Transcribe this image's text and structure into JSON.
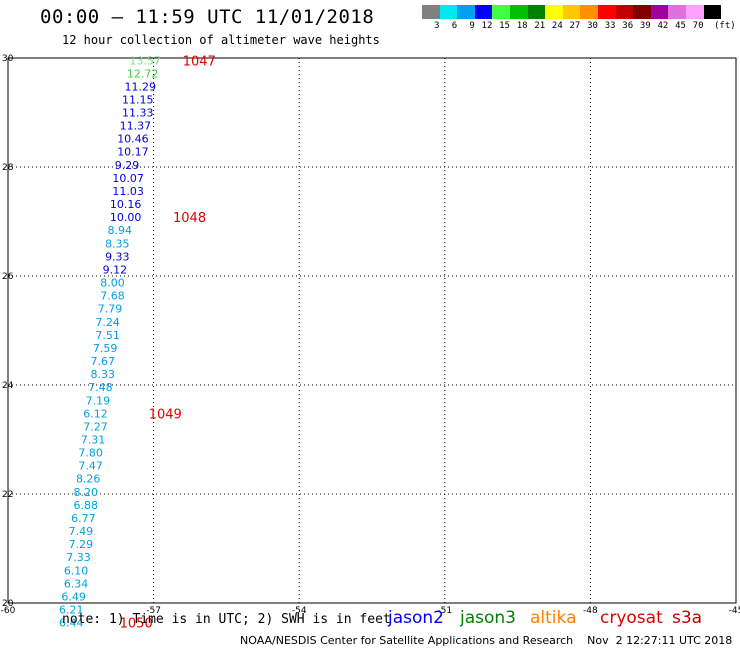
{
  "header": {
    "title": "00:00 – 11:59 UTC 11/01/2018",
    "subtitle": "12 hour collection of altimeter wave heights"
  },
  "legend": {
    "colors": [
      "#808080",
      "#00e8f0",
      "#00a0f0",
      "#0000ff",
      "#40ff40",
      "#00c000",
      "#008000",
      "#ffff00",
      "#ffc800",
      "#ff9000",
      "#ff0000",
      "#c00000",
      "#800000",
      "#a000a0",
      "#e070e0",
      "#ffa0ff",
      "#000000"
    ],
    "labels": [
      "3",
      "6",
      "9",
      "12",
      "15",
      "18",
      "21",
      "24",
      "27",
      "30",
      "33",
      "36",
      "39",
      "42",
      "45",
      "70"
    ],
    "unit": "(ft)"
  },
  "note": "note: 1) Time is in UTC; 2) SWH is in feet",
  "satellites": [
    {
      "name": "jason2",
      "color": "#0000ff"
    },
    {
      "name": "jason3",
      "color": "#008000"
    },
    {
      "name": "altika",
      "color": "#ff8000"
    },
    {
      "name": "cryosat",
      "color": "#e00000"
    },
    {
      "name": "s3a",
      "color": "#c00000"
    }
  ],
  "footer": "NOAA/NESDIS Center for Satellite Applications and Research    Nov  2 12:27:11 UTC 2018",
  "chart_data": {
    "type": "scatter",
    "title": "00:00 – 11:59 UTC 11/01/2018",
    "xlim": [
      -60,
      -45
    ],
    "ylim": [
      20,
      30
    ],
    "xticks": [
      -60,
      -57,
      -54,
      -51,
      -48,
      -45
    ],
    "yticks": [
      20,
      22,
      24,
      26,
      28,
      30
    ],
    "grid": true,
    "points": [
      {
        "lon": -57.5,
        "lat": 29.95,
        "label": "13.57",
        "color": "#80e080"
      },
      {
        "lon": -57.55,
        "lat": 29.72,
        "label": "12.72",
        "color": "#40d040"
      },
      {
        "lon": -57.6,
        "lat": 29.48,
        "label": "11.29",
        "color": "#0000e0"
      },
      {
        "lon": -57.65,
        "lat": 29.24,
        "label": "11.15",
        "color": "#0000e0"
      },
      {
        "lon": -57.65,
        "lat": 29.0,
        "label": "11.33",
        "color": "#0000e0"
      },
      {
        "lon": -57.7,
        "lat": 28.76,
        "label": "11.37",
        "color": "#0000e0"
      },
      {
        "lon": -57.75,
        "lat": 28.52,
        "label": "10.46",
        "color": "#0000e0"
      },
      {
        "lon": -57.75,
        "lat": 28.28,
        "label": "10.17",
        "color": "#0000e0"
      },
      {
        "lon": -57.8,
        "lat": 28.04,
        "label": "9.29",
        "color": "#0000e0"
      },
      {
        "lon": -57.85,
        "lat": 27.8,
        "label": "10.07",
        "color": "#0000e0"
      },
      {
        "lon": -57.85,
        "lat": 27.56,
        "label": "11.03",
        "color": "#0000e0"
      },
      {
        "lon": -57.9,
        "lat": 27.32,
        "label": "10.16",
        "color": "#0000e0"
      },
      {
        "lon": -57.9,
        "lat": 27.08,
        "label": "10.00",
        "color": "#0000e0"
      },
      {
        "lon": -57.95,
        "lat": 26.84,
        "label": "8.94",
        "color": "#00a0e0"
      },
      {
        "lon": -58.0,
        "lat": 26.6,
        "label": "8.35",
        "color": "#00a0e0"
      },
      {
        "lon": -58.0,
        "lat": 26.36,
        "label": "9.33",
        "color": "#0000e0"
      },
      {
        "lon": -58.05,
        "lat": 26.12,
        "label": "9.12",
        "color": "#0000e0"
      },
      {
        "lon": -58.1,
        "lat": 25.88,
        "label": "8.00",
        "color": "#00a0e0"
      },
      {
        "lon": -58.1,
        "lat": 25.64,
        "label": "7.68",
        "color": "#00a0e0"
      },
      {
        "lon": -58.15,
        "lat": 25.4,
        "label": "7.79",
        "color": "#00a0e0"
      },
      {
        "lon": -58.2,
        "lat": 25.16,
        "label": "7.24",
        "color": "#00a0e0"
      },
      {
        "lon": -58.2,
        "lat": 24.92,
        "label": "7.51",
        "color": "#00a0e0"
      },
      {
        "lon": -58.25,
        "lat": 24.68,
        "label": "7.59",
        "color": "#00a0e0"
      },
      {
        "lon": -58.3,
        "lat": 24.44,
        "label": "7.67",
        "color": "#00a0e0"
      },
      {
        "lon": -58.3,
        "lat": 24.2,
        "label": "8.33",
        "color": "#00a0e0"
      },
      {
        "lon": -58.35,
        "lat": 23.96,
        "label": "7.48",
        "color": "#00a0e0"
      },
      {
        "lon": -58.4,
        "lat": 23.72,
        "label": "7.19",
        "color": "#00a0e0"
      },
      {
        "lon": -58.45,
        "lat": 23.48,
        "label": "6.12",
        "color": "#00a0e0"
      },
      {
        "lon": -58.45,
        "lat": 23.24,
        "label": "7.27",
        "color": "#00a0e0"
      },
      {
        "lon": -58.5,
        "lat": 23.0,
        "label": "7.31",
        "color": "#00a0e0"
      },
      {
        "lon": -58.55,
        "lat": 22.76,
        "label": "7.80",
        "color": "#00a0e0"
      },
      {
        "lon": -58.55,
        "lat": 22.52,
        "label": "7.47",
        "color": "#00a0e0"
      },
      {
        "lon": -58.6,
        "lat": 22.28,
        "label": "8.26",
        "color": "#00a0e0"
      },
      {
        "lon": -58.65,
        "lat": 22.04,
        "label": "8.20",
        "color": "#00a0e0"
      },
      {
        "lon": -58.65,
        "lat": 21.8,
        "label": "6.88",
        "color": "#00a0e0"
      },
      {
        "lon": -58.7,
        "lat": 21.56,
        "label": "6.77",
        "color": "#00a0e0"
      },
      {
        "lon": -58.75,
        "lat": 21.32,
        "label": "7.49",
        "color": "#00a0e0"
      },
      {
        "lon": -58.75,
        "lat": 21.08,
        "label": "7.29",
        "color": "#00a0e0"
      },
      {
        "lon": -58.8,
        "lat": 20.84,
        "label": "7.33",
        "color": "#00a0e0"
      },
      {
        "lon": -58.85,
        "lat": 20.6,
        "label": "6.10",
        "color": "#00a0e0"
      },
      {
        "lon": -58.85,
        "lat": 20.36,
        "label": "6.34",
        "color": "#00a0e0"
      },
      {
        "lon": -58.9,
        "lat": 20.12,
        "label": "6.49",
        "color": "#00a0e0"
      },
      {
        "lon": -58.95,
        "lat": 19.88,
        "label": "6.21",
        "color": "#00a0e0"
      },
      {
        "lon": -58.95,
        "lat": 19.64,
        "label": "6.44",
        "color": "#00a0e0"
      }
    ],
    "time_labels": [
      {
        "lon": -56.4,
        "lat": 29.95,
        "label": "1047",
        "color": "#e00000"
      },
      {
        "lon": -56.6,
        "lat": 27.08,
        "label": "1048",
        "color": "#e00000"
      },
      {
        "lon": -57.1,
        "lat": 23.48,
        "label": "1049",
        "color": "#e00000"
      },
      {
        "lon": -57.7,
        "lat": 19.64,
        "label": "1050",
        "color": "#e00000"
      }
    ]
  }
}
